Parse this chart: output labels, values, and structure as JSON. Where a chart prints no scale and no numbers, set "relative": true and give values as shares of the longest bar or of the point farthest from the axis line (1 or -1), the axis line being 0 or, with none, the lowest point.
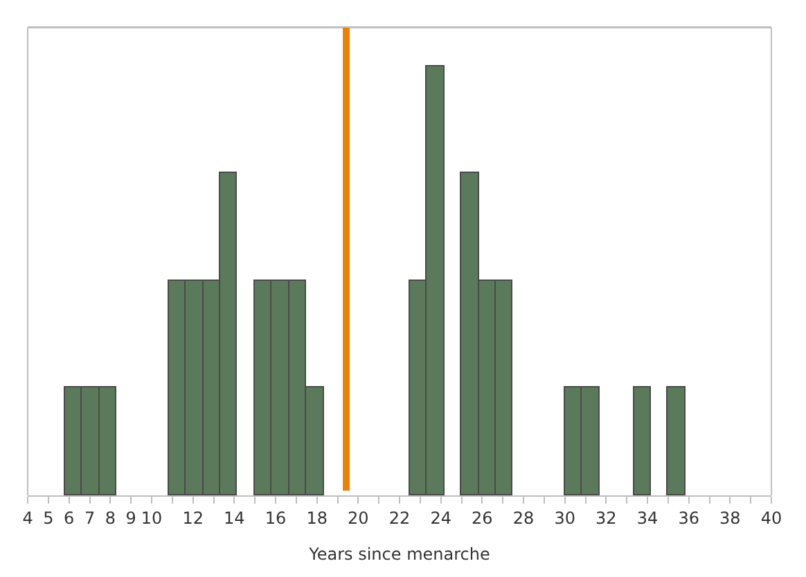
{
  "chart_data": {
    "type": "bar",
    "xlabel": "Years since menarche",
    "relative": true,
    "color": "#5b7a5b",
    "x": [
      6.23,
      7.06,
      7.9,
      11.23,
      12.07,
      12.9,
      13.73,
      15.4,
      16.24,
      17.07,
      17.9,
      22.91,
      23.74,
      25.41,
      26.24,
      27.08,
      30.41,
      31.25,
      33.75,
      35.42
    ],
    "values": [
      0.25,
      0.25,
      0.25,
      0.5,
      0.5,
      0.5,
      0.75,
      0.5,
      0.5,
      0.5,
      0.25,
      0.5,
      1,
      0.75,
      0.5,
      0.5,
      0.25,
      0.25,
      0.25,
      0.25
    ],
    "xlim": [
      4,
      40
    ],
    "xticks": [
      4,
      5,
      6,
      7,
      8,
      9,
      10,
      {
        "value": 11,
        "label": null
      },
      12,
      {
        "value": 13,
        "label": null
      },
      14,
      {
        "value": 15,
        "label": null
      },
      16,
      {
        "value": 17,
        "label": null
      },
      18,
      {
        "value": 19,
        "label": null
      },
      20,
      {
        "value": 21,
        "label": null
      },
      22,
      {
        "value": 23,
        "label": null
      },
      24,
      {
        "value": 25,
        "label": null
      },
      26,
      {
        "value": 27,
        "label": null
      },
      28,
      {
        "value": 29,
        "label": null
      },
      30,
      {
        "value": 31,
        "label": null
      },
      32,
      {
        "value": 33,
        "label": null
      },
      34,
      {
        "value": 35,
        "label": null
      },
      36,
      {
        "value": 37,
        "label": null
      },
      38,
      {
        "value": 39,
        "label": null
      },
      40
    ],
    "ref_lines": [
      {
        "axis": "x",
        "value": 19.42,
        "color": "#e8820c"
      }
    ],
    "tick_labels": "x"
  }
}
